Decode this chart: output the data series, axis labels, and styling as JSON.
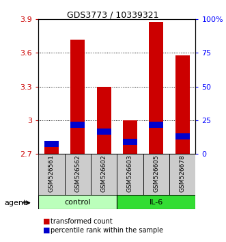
{
  "title": "GDS3773 / 10339321",
  "samples": [
    "GSM526561",
    "GSM526562",
    "GSM526602",
    "GSM526603",
    "GSM526605",
    "GSM526678"
  ],
  "red_values": [
    2.76,
    3.72,
    3.3,
    3.0,
    3.88,
    3.58
  ],
  "blue_values": [
    2.76,
    2.93,
    2.87,
    2.78,
    2.93,
    2.83
  ],
  "ymin": 2.7,
  "ymax": 3.9,
  "yticks": [
    2.7,
    3.0,
    3.3,
    3.6,
    3.9
  ],
  "ytick_labels": [
    "2.7",
    "3",
    "3.3",
    "3.6",
    "3.9"
  ],
  "right_ytick_labels": [
    "0",
    "25",
    "50",
    "75",
    "100%"
  ],
  "bar_width": 0.55,
  "red_color": "#cc0000",
  "blue_color": "#0000cc",
  "control_color": "#bbffbb",
  "il6_color": "#33dd33",
  "sample_label_bg": "#cccccc",
  "bar_bottom": 2.7,
  "blue_bar_height": 0.055,
  "grid_lines": [
    3.0,
    3.3,
    3.6
  ],
  "control_samples": [
    0,
    1,
    2
  ],
  "il6_samples": [
    3,
    4,
    5
  ],
  "title_fontsize": 9,
  "tick_fontsize": 8,
  "legend_fontsize": 7,
  "sample_fontsize": 6.5,
  "group_fontsize": 8,
  "agent_fontsize": 8
}
